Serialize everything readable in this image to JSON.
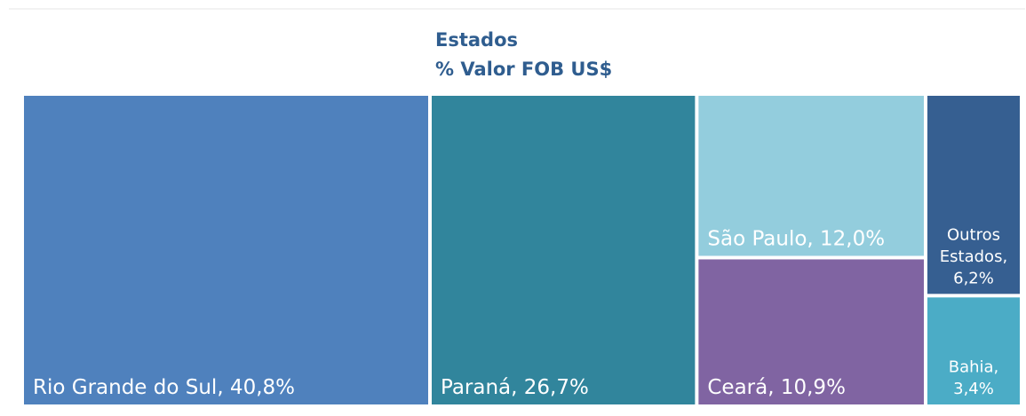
{
  "chart_data": {
    "type": "treemap",
    "title": "Estados",
    "subtitle": "% Valor FOB US$",
    "values": [
      40.8,
      26.7,
      12.0,
      10.9,
      6.2,
      3.4
    ],
    "value_labels": [
      "Rio Grande do Sul, 40,8%",
      "Paraná, 26,7%",
      "São Paulo, 12,0%",
      "Ceará, 10,9%",
      "Outros Estados, 6,2%",
      "Bahia, 3,4%"
    ],
    "colors": [
      "#4f81bd",
      "#31859c",
      "#93cddd",
      "#8064a2",
      "#365f91",
      "#4bacc6"
    ]
  }
}
